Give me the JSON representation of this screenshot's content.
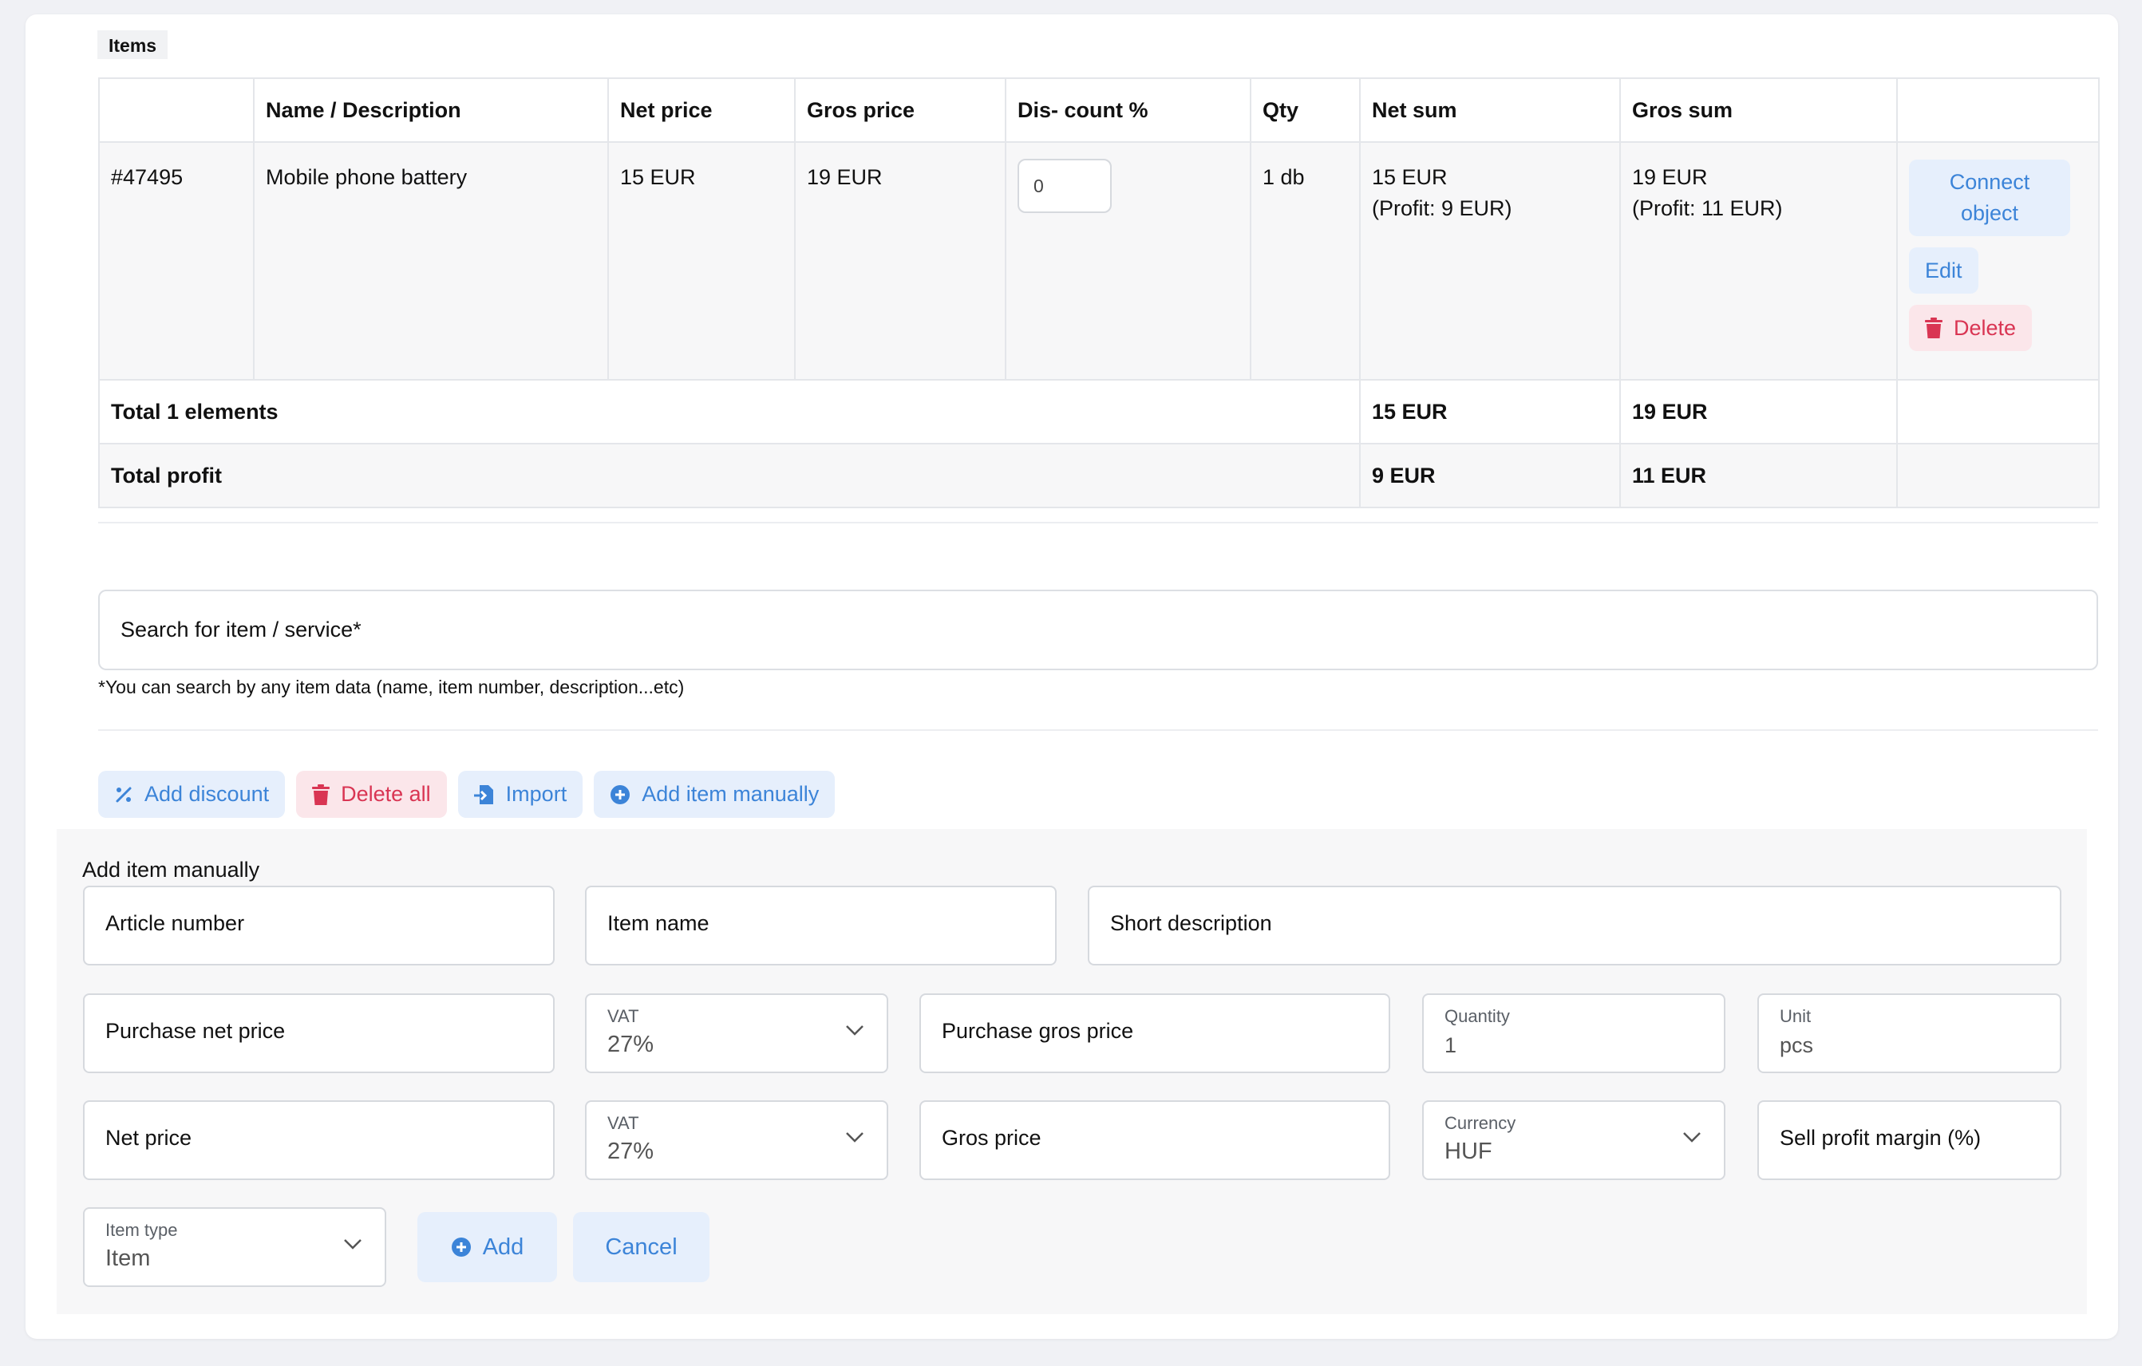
{
  "section_title": "Items",
  "table": {
    "headers": [
      "",
      "Name / Description",
      "Net price",
      "Gros price",
      "Dis- count %",
      "Qty",
      "Net sum",
      "Gros sum",
      ""
    ],
    "row": {
      "id": "#47495",
      "name": "Mobile phone battery",
      "net_price": "15 EUR",
      "gros_price": "19 EUR",
      "discount": "0",
      "qty": "1 db",
      "net_sum": "15 EUR",
      "net_profit": "(Profit: 9 EUR)",
      "gros_sum": "19 EUR",
      "gros_profit": "(Profit: 11 EUR)",
      "actions": {
        "connect_line1": "Connect",
        "connect_line2": "object",
        "edit": "Edit",
        "delete": "Delete"
      }
    },
    "total": {
      "label": "Total 1 elements",
      "net": "15 EUR",
      "gros": "19 EUR"
    },
    "profit": {
      "label": "Total profit",
      "net": "9 EUR",
      "gros": "11 EUR"
    }
  },
  "search": {
    "placeholder": "Search for item / service*",
    "hint": "*You can search by any item data (name, item number, description...etc)"
  },
  "actions": {
    "add_discount": "Add discount",
    "delete_all": "Delete all",
    "import": "Import",
    "add_item_manually": "Add item manually"
  },
  "manual": {
    "title": "Add item manually",
    "article_number": "Article number",
    "item_name": "Item name",
    "short_description": "Short description",
    "purchase_net_price": "Purchase net price",
    "vat1": {
      "label": "VAT",
      "value": "27%"
    },
    "purchase_gros_price": "Purchase gros price",
    "quantity": {
      "label": "Quantity",
      "value": "1"
    },
    "unit": {
      "label": "Unit",
      "value": "pcs"
    },
    "net_price": "Net price",
    "vat2": {
      "label": "VAT",
      "value": "27%"
    },
    "gros_price": "Gros price",
    "currency": {
      "label": "Currency",
      "value": "HUF"
    },
    "sell_profit_margin": "Sell profit margin (%)",
    "item_type": {
      "label": "Item type",
      "value": "Item"
    },
    "add": "Add",
    "cancel": "Cancel"
  },
  "colors": {
    "blue": "#3c84d8",
    "blue_bg": "#e6effc",
    "red": "#d93553",
    "red_bg": "#fbe6ea"
  },
  "icons": [
    "trash-icon",
    "percent-icon",
    "import-file-icon",
    "plus-circle-icon",
    "chevron-down-icon"
  ]
}
